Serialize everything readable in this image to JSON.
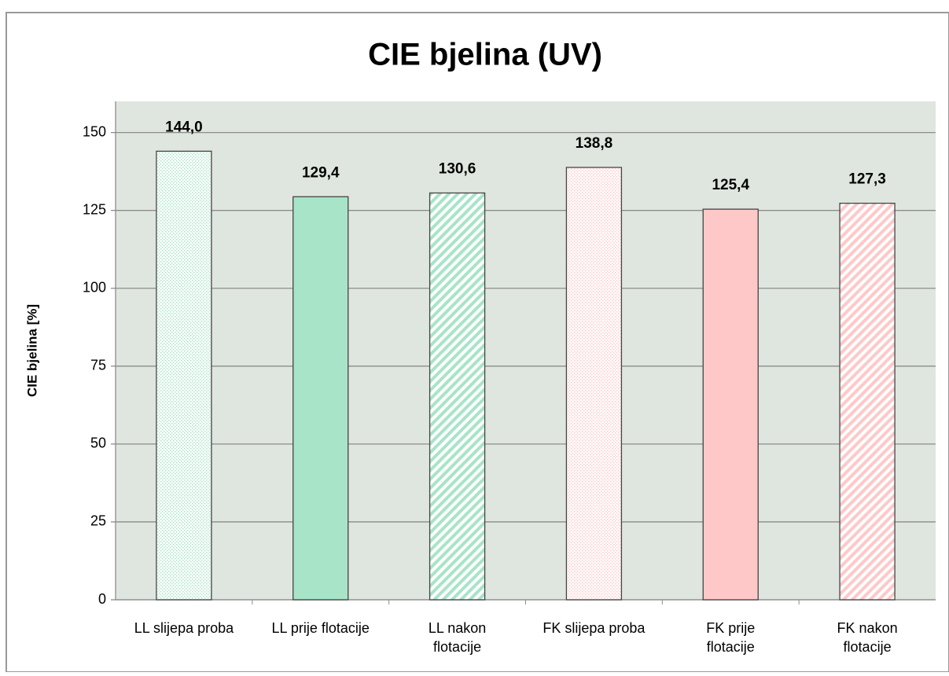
{
  "chart_data": {
    "type": "bar",
    "title": "CIE bjelina (UV)",
    "y_label": "CIE bjelina [%]",
    "categories": [
      "LL slijepa proba",
      "LL prije flotacije",
      "LL nakon\nflotacije",
      "FK slijepa proba",
      "FK prije\nflotacije",
      "FK nakon\nflotacije"
    ],
    "values": [
      144.0,
      129.4,
      130.6,
      138.8,
      125.4,
      127.3
    ],
    "value_labels": [
      "144,0",
      "129,4",
      "130,6",
      "138,8",
      "125,4",
      "127,3"
    ],
    "colors": [
      "#a8e4c8",
      "#a8e4c8",
      "#a8e4c8",
      "#ffc8c8",
      "#ffc8c8",
      "#ffc8c8"
    ],
    "patterns": [
      "dots",
      "solid",
      "stripes",
      "dots",
      "solid",
      "stripes"
    ],
    "ylim": [
      0,
      160
    ],
    "yticks": [
      0,
      25,
      50,
      75,
      100,
      125,
      150
    ],
    "grid": true
  }
}
